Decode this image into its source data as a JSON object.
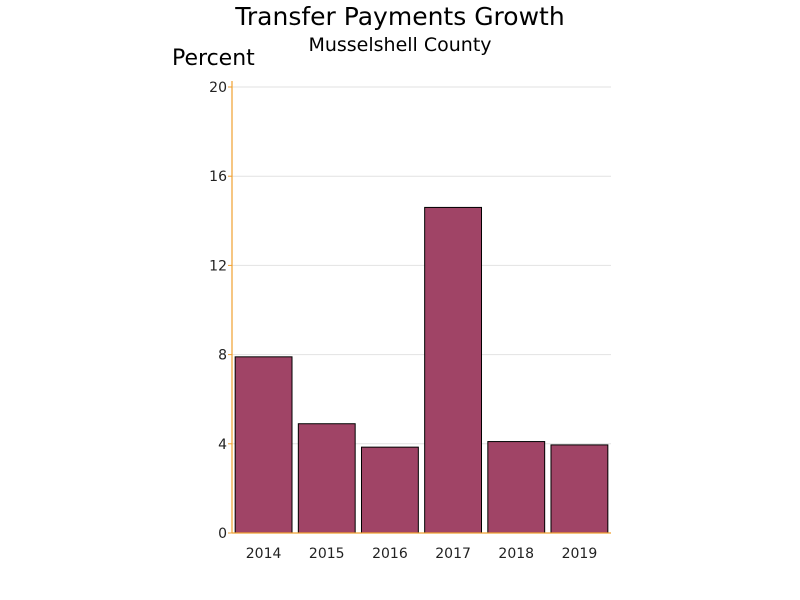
{
  "chart_data": {
    "type": "bar",
    "title": "Transfer Payments Growth",
    "subtitle": "Musselshell County",
    "ylabel": "Percent",
    "xlabel": "",
    "categories": [
      "2014",
      "2015",
      "2016",
      "2017",
      "2018",
      "2019"
    ],
    "values": [
      7.9,
      4.9,
      3.85,
      14.6,
      4.1,
      3.95
    ],
    "ylim": [
      0,
      20
    ],
    "yticks": [
      0,
      4,
      8,
      12,
      16,
      20
    ],
    "grid": true,
    "colors": {
      "bar_fill": "#a04466",
      "bar_stroke": "#000000",
      "axis": "#f0a030",
      "grid": "#e2e2e2"
    }
  }
}
